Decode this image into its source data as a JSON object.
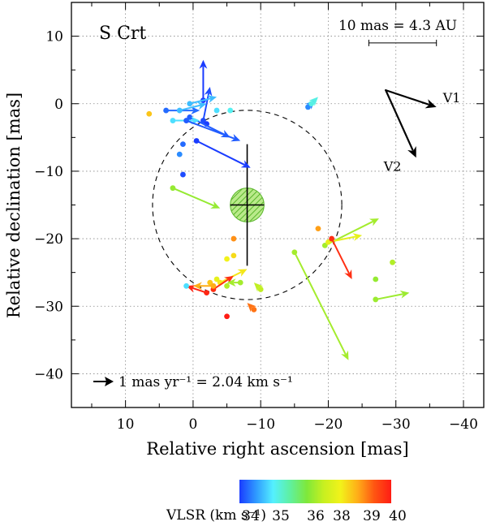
{
  "chart_data": {
    "type": "scatter",
    "title": "S Crt",
    "xlabel": "Relative right ascension  [mas]",
    "ylabel": "Relative declination  [mas]",
    "xlim": [
      18,
      -43
    ],
    "ylim": [
      -45,
      15
    ],
    "x_ticks": [
      10,
      0,
      -10,
      -20,
      -30,
      -40
    ],
    "x_tick_labels": [
      "10",
      "0",
      "−10",
      "−20",
      "−30",
      "−40"
    ],
    "y_ticks": [
      10,
      0,
      -10,
      -20,
      -30,
      -40
    ],
    "y_tick_labels": [
      "10",
      "0",
      "−10",
      "−20",
      "−30",
      "−40"
    ],
    "grid": true,
    "scale_bar": {
      "label": "10 mas = 4.3 AU",
      "length_mas": 10,
      "x_start": -26,
      "y": 9
    },
    "proper_motion_key": {
      "label": "1 mas yr⁻¹ = 2.04 km s⁻¹"
    },
    "circle": {
      "cx": -8,
      "cy": -15,
      "r": 14
    },
    "center_cross": {
      "x": -8,
      "y": -15,
      "half_width": 2.5,
      "y_top": -6,
      "y_bottom": -24
    },
    "center_disk": {
      "x": -8,
      "y": -15,
      "r": 2.5,
      "color": "#7fd43a"
    },
    "vectors": [
      {
        "name": "V1",
        "x0": -28.5,
        "y0": 2,
        "x1": -36,
        "y1": -0.5
      },
      {
        "name": "V2",
        "x0": -28.5,
        "y0": 2,
        "x1": -33,
        "y1": -8
      }
    ],
    "colorbar": {
      "label": "VLSR (km s⁻¹)",
      "ticks": [
        "34",
        "35",
        "36",
        "38",
        "39",
        "40"
      ],
      "colors": [
        "#1a3cff",
        "#2f9bff",
        "#54f0ff",
        "#5ff0a0",
        "#7fe83a",
        "#c8f020",
        "#f2f21a",
        "#ffae18",
        "#ff5512",
        "#ff1c14"
      ]
    },
    "spots": [
      {
        "x": -1.5,
        "y": 0.5,
        "v": 34.0,
        "dx": 0,
        "dy": 6
      },
      {
        "x": -1.5,
        "y": -2.5,
        "v": 34.1,
        "dx": 1,
        "dy": 5
      },
      {
        "x": -2.0,
        "y": -3.0,
        "v": 34.0,
        "dx": 0,
        "dy": 0
      },
      {
        "x": 0.5,
        "y": -2.0,
        "v": 34.2,
        "dx": 6,
        "dy": -3
      },
      {
        "x": 4.0,
        "y": -1.0,
        "v": 34.3,
        "dx": 5,
        "dy": 0
      },
      {
        "x": 2.0,
        "y": -1.0,
        "v": 34.8,
        "dx": 4,
        "dy": 1
      },
      {
        "x": 3.0,
        "y": -2.5,
        "v": 35.0,
        "dx": 4,
        "dy": 0
      },
      {
        "x": 1.0,
        "y": -2.5,
        "v": 34.2,
        "dx": 8,
        "dy": -3
      },
      {
        "x": -0.5,
        "y": -5.5,
        "v": 34.0,
        "dx": 8,
        "dy": -4
      },
      {
        "x": 1.5,
        "y": -6.0,
        "v": 34.3,
        "dx": 0,
        "dy": 0
      },
      {
        "x": 2.0,
        "y": -7.5,
        "v": 34.5,
        "dx": 0,
        "dy": 0
      },
      {
        "x": 1.5,
        "y": -10.5,
        "v": 34.1,
        "dx": 0,
        "dy": 0
      },
      {
        "x": 0.5,
        "y": 0.0,
        "v": 34.8,
        "dx": 4,
        "dy": 1
      },
      {
        "x": 6.5,
        "y": -1.5,
        "v": 38.6,
        "dx": 0,
        "dy": 0
      },
      {
        "x": -3.5,
        "y": -1.0,
        "v": 35.0,
        "dx": 0,
        "dy": 0
      },
      {
        "x": -5.5,
        "y": -1.0,
        "v": 35.2,
        "dx": 0,
        "dy": 0
      },
      {
        "x": -17.0,
        "y": -0.5,
        "v": 34.5,
        "dx": 1,
        "dy": 1
      },
      {
        "x": -17.5,
        "y": 0.0,
        "v": 35.3,
        "dx": 1,
        "dy": 1
      },
      {
        "x": 3.0,
        "y": -12.5,
        "v": 36.8,
        "dx": 7,
        "dy": -3
      },
      {
        "x": -18.5,
        "y": -18.5,
        "v": 38.9,
        "dx": 0,
        "dy": 0
      },
      {
        "x": -19.5,
        "y": -21.0,
        "v": 37.0,
        "dx": 8,
        "dy": 4
      },
      {
        "x": -20.0,
        "y": -20.5,
        "v": 38.0,
        "dx": 5,
        "dy": 1
      },
      {
        "x": -20.5,
        "y": -20.0,
        "v": 39.8,
        "dx": 3,
        "dy": -6
      },
      {
        "x": -15.0,
        "y": -22.0,
        "v": 37.0,
        "dx": 8,
        "dy": -16
      },
      {
        "x": -27.0,
        "y": -26.0,
        "v": 36.8,
        "dx": 0,
        "dy": 0
      },
      {
        "x": -29.5,
        "y": -23.5,
        "v": 37.2,
        "dx": 0,
        "dy": 0
      },
      {
        "x": -27.0,
        "y": -29.0,
        "v": 36.9,
        "dx": 5,
        "dy": 1
      },
      {
        "x": -6.0,
        "y": -20.0,
        "v": 39.0,
        "dx": 0,
        "dy": 0
      },
      {
        "x": -5.0,
        "y": -23.0,
        "v": 38.2,
        "dx": 0,
        "dy": 0
      },
      {
        "x": -6.0,
        "y": -22.5,
        "v": 38.4,
        "dx": 0,
        "dy": 0
      },
      {
        "x": -3.5,
        "y": -26.0,
        "v": 38.0,
        "dx": 0,
        "dy": 0
      },
      {
        "x": -2.5,
        "y": -26.5,
        "v": 38.6,
        "dx": 0,
        "dy": 0
      },
      {
        "x": -4.0,
        "y": -26.5,
        "v": 38.3,
        "dx": 4,
        "dy": 2
      },
      {
        "x": -3.0,
        "y": -27.5,
        "v": 39.8,
        "dx": 3,
        "dy": 2
      },
      {
        "x": -2.0,
        "y": -28.0,
        "v": 39.9,
        "dx": -3,
        "dy": 1
      },
      {
        "x": -3.0,
        "y": -27.0,
        "v": 38.8,
        "dx": -3,
        "dy": 0
      },
      {
        "x": -5.0,
        "y": -27.0,
        "v": 37.2,
        "dx": 0,
        "dy": 0
      },
      {
        "x": -7.0,
        "y": -26.5,
        "v": 37.0,
        "dx": -2,
        "dy": 0
      },
      {
        "x": -10.0,
        "y": -27.5,
        "v": 37.4,
        "dx": -1,
        "dy": 1
      },
      {
        "x": -9.0,
        "y": -30.5,
        "v": 39.2,
        "dx": -1,
        "dy": 1
      },
      {
        "x": 1.0,
        "y": -27.0,
        "v": 35.0,
        "dx": 0,
        "dy": 0
      },
      {
        "x": -5.0,
        "y": -31.5,
        "v": 40.0,
        "dx": 0,
        "dy": 0
      }
    ]
  }
}
